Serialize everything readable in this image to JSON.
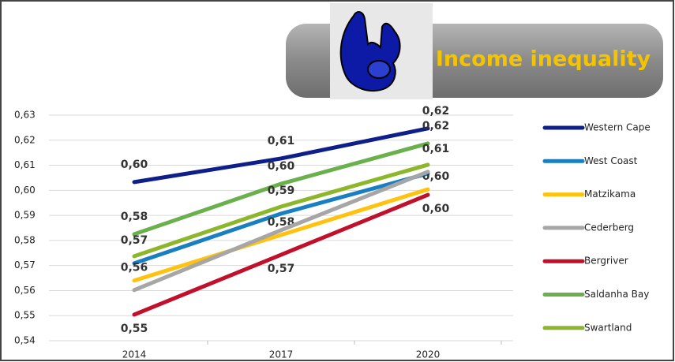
{
  "chart_data": {
    "type": "line",
    "title": "Income inequality",
    "categories": [
      "2014",
      "2017",
      "2020"
    ],
    "ylim": [
      0.54,
      0.63
    ],
    "yticks": [
      {
        "value": 0.54,
        "label": "0,54"
      },
      {
        "value": 0.55,
        "label": "0,55"
      },
      {
        "value": 0.56,
        "label": "0,56"
      },
      {
        "value": 0.57,
        "label": "0,57"
      },
      {
        "value": 0.58,
        "label": "0,58"
      },
      {
        "value": 0.59,
        "label": "0,59"
      },
      {
        "value": 0.6,
        "label": "0,60"
      },
      {
        "value": 0.61,
        "label": "0,61"
      },
      {
        "value": 0.62,
        "label": "0,62"
      },
      {
        "value": 0.63,
        "label": "0,63"
      }
    ],
    "grid": true,
    "legend": "right",
    "series": [
      {
        "name": "Western Cape",
        "color": "#0f1f8a",
        "values": [
          0.6033,
          0.6127,
          0.6247
        ],
        "value_labels": [
          "0,60",
          "0,61",
          "0,62"
        ]
      },
      {
        "name": "West Coast",
        "color": "#1a7fc0",
        "values": [
          0.5709,
          0.5907,
          0.6067
        ]
      },
      {
        "name": "Matzikama",
        "color": "#ffc20e",
        "values": [
          0.564,
          0.5822,
          0.6004
        ],
        "value_labels": [
          "0,56",
          "0,58",
          "0,60"
        ]
      },
      {
        "name": "Cederberg",
        "color": "#a6a6a6",
        "values": [
          0.5602,
          0.5841,
          0.6074
        ]
      },
      {
        "name": "Bergriver",
        "color": "#c0102c",
        "values": [
          0.5504,
          0.5743,
          0.5982
        ],
        "value_labels": [
          "0,55",
          "0,57",
          "0,60"
        ]
      },
      {
        "name": "Saldanha Bay",
        "color": "#6ab04c",
        "values": [
          0.5825,
          0.6026,
          0.6187
        ],
        "value_labels": [
          "0,58",
          "0,60",
          "0,62"
        ]
      },
      {
        "name": "Swartland",
        "color": "#8db72a",
        "values": [
          0.5737,
          0.5935,
          0.6102
        ],
        "value_labels": [
          "0,57",
          "0,59",
          "0,61"
        ]
      }
    ]
  }
}
